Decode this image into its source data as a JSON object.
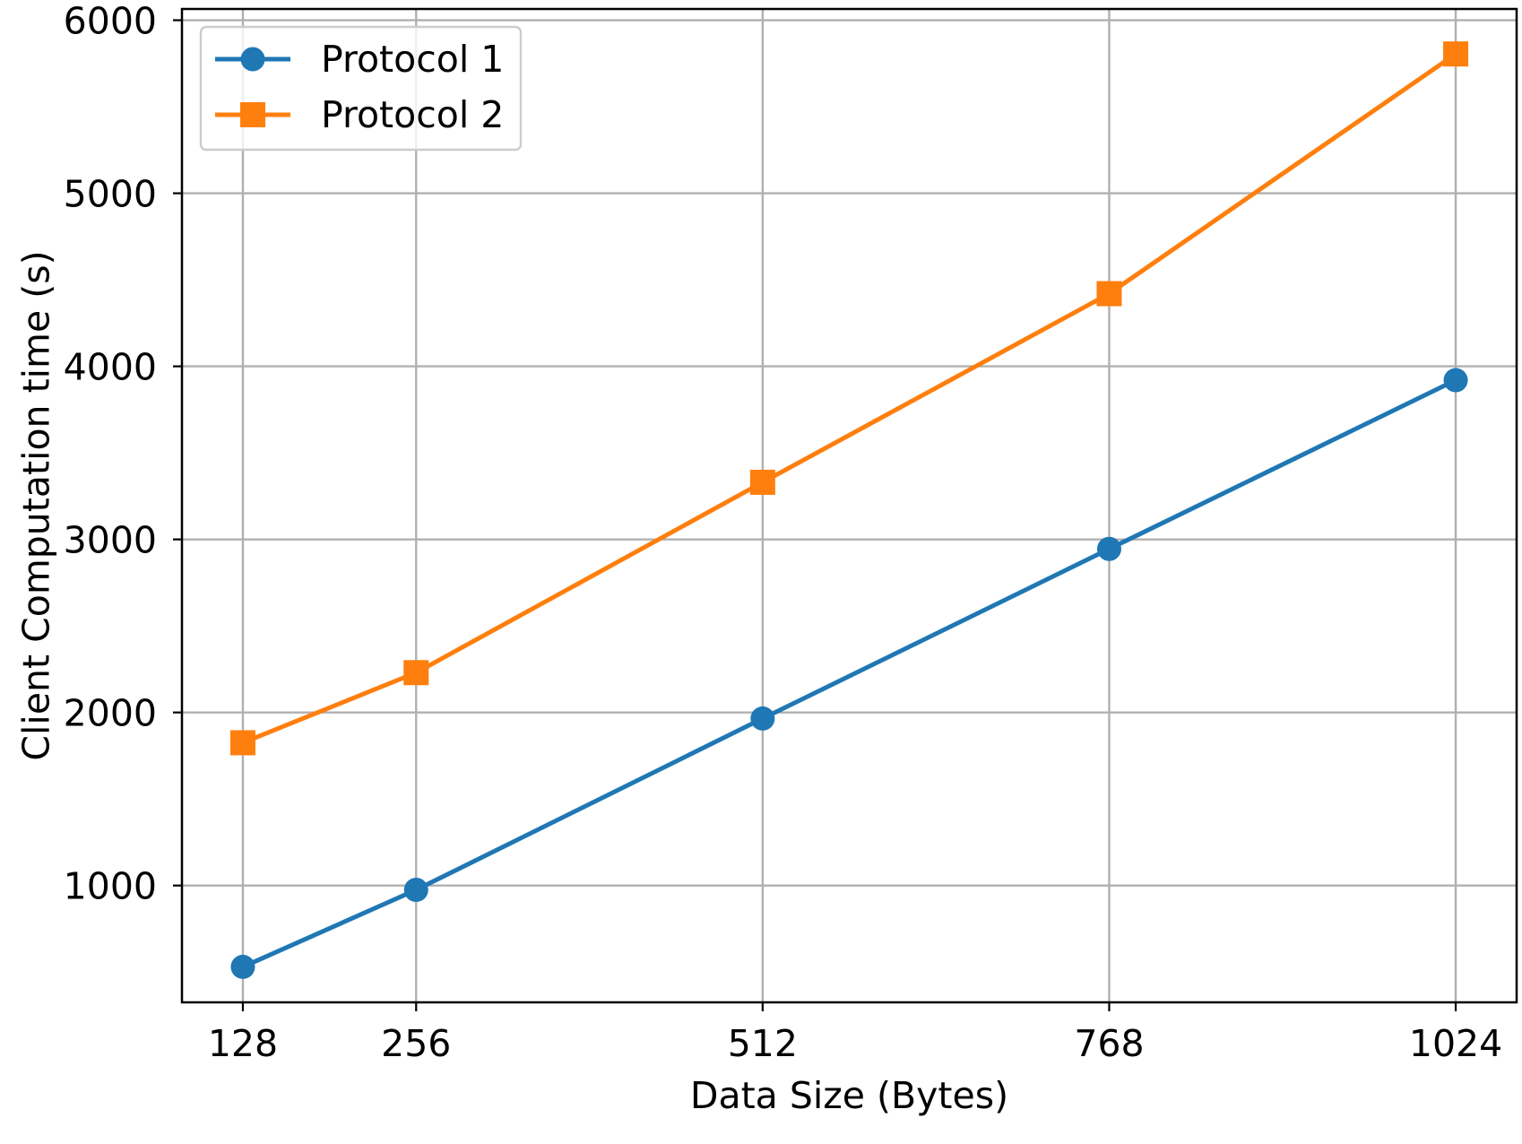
{
  "chart_data": {
    "type": "line",
    "xlabel": "Data Size (Bytes)",
    "ylabel": "Client Computation time (s)",
    "x": [
      128,
      256,
      512,
      768,
      1024
    ],
    "xticks": [
      "128",
      "256",
      "512",
      "768",
      "1024"
    ],
    "yticks": [
      "1000",
      "2000",
      "3000",
      "4000",
      "5000",
      "6000"
    ],
    "ytick_values": [
      1000,
      2000,
      3000,
      4000,
      5000,
      6000
    ],
    "xlim": [
      83,
      1069
    ],
    "ylim": [
      325,
      6065
    ],
    "grid": true,
    "legend_position": "top-left",
    "series": [
      {
        "name": "Protocol 1",
        "color": "#1f77b4",
        "marker": "circle",
        "values": [
          530,
          975,
          1965,
          2945,
          3920
        ]
      },
      {
        "name": "Protocol 2",
        "color": "#ff7f0e",
        "marker": "square",
        "values": [
          1825,
          2230,
          3330,
          4420,
          5805
        ]
      }
    ]
  }
}
